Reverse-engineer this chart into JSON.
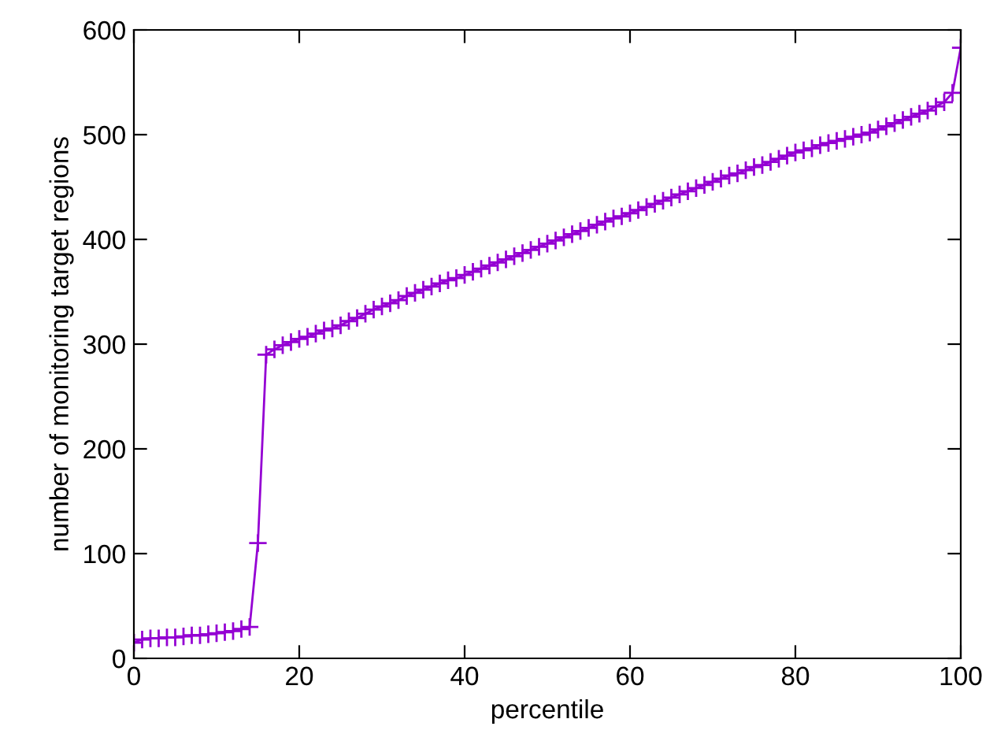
{
  "chart_data": {
    "type": "line",
    "xlabel": "percentile",
    "ylabel": "number of monitoring target regions",
    "x": [
      0,
      1,
      2,
      3,
      4,
      5,
      6,
      7,
      8,
      9,
      10,
      11,
      12,
      13,
      14,
      15,
      16,
      17,
      18,
      19,
      20,
      21,
      22,
      23,
      24,
      25,
      26,
      27,
      28,
      29,
      30,
      31,
      32,
      33,
      34,
      35,
      36,
      37,
      38,
      39,
      40,
      41,
      42,
      43,
      44,
      45,
      46,
      47,
      48,
      49,
      50,
      51,
      52,
      53,
      54,
      55,
      56,
      57,
      58,
      59,
      60,
      61,
      62,
      63,
      64,
      65,
      66,
      67,
      68,
      69,
      70,
      71,
      72,
      73,
      74,
      75,
      76,
      77,
      78,
      79,
      80,
      81,
      82,
      83,
      84,
      85,
      86,
      87,
      88,
      89,
      90,
      91,
      92,
      93,
      94,
      95,
      96,
      97,
      98,
      99,
      100
    ],
    "series": [
      {
        "color": "#9400d3",
        "values": [
          15,
          18,
          19,
          19,
          20,
          20,
          21,
          22,
          22,
          23,
          24,
          25,
          26,
          28,
          30,
          110,
          290,
          295,
          299,
          302,
          305,
          307,
          310,
          313,
          315,
          318,
          322,
          325,
          329,
          333,
          336,
          339,
          342,
          346,
          349,
          352,
          355,
          358,
          361,
          363,
          366,
          369,
          372,
          375,
          378,
          381,
          384,
          387,
          390,
          393,
          396,
          399,
          402,
          405,
          408,
          411,
          414,
          417,
          420,
          422,
          425,
          428,
          431,
          434,
          437,
          440,
          443,
          446,
          449,
          452,
          455,
          458,
          461,
          463,
          466,
          469,
          471,
          474,
          477,
          480,
          483,
          485,
          487,
          490,
          492,
          494,
          496,
          498,
          500,
          502,
          505,
          508,
          511,
          514,
          517,
          520,
          523,
          527,
          531,
          540,
          583
        ]
      }
    ],
    "xlim": [
      0,
      100
    ],
    "ylim": [
      0,
      600
    ],
    "xticks": [
      0,
      20,
      40,
      60,
      80,
      100
    ],
    "yticks": [
      0,
      100,
      200,
      300,
      400,
      500,
      600
    ],
    "marker": "cross",
    "line_style": "solid",
    "grid": false,
    "legend": false
  }
}
